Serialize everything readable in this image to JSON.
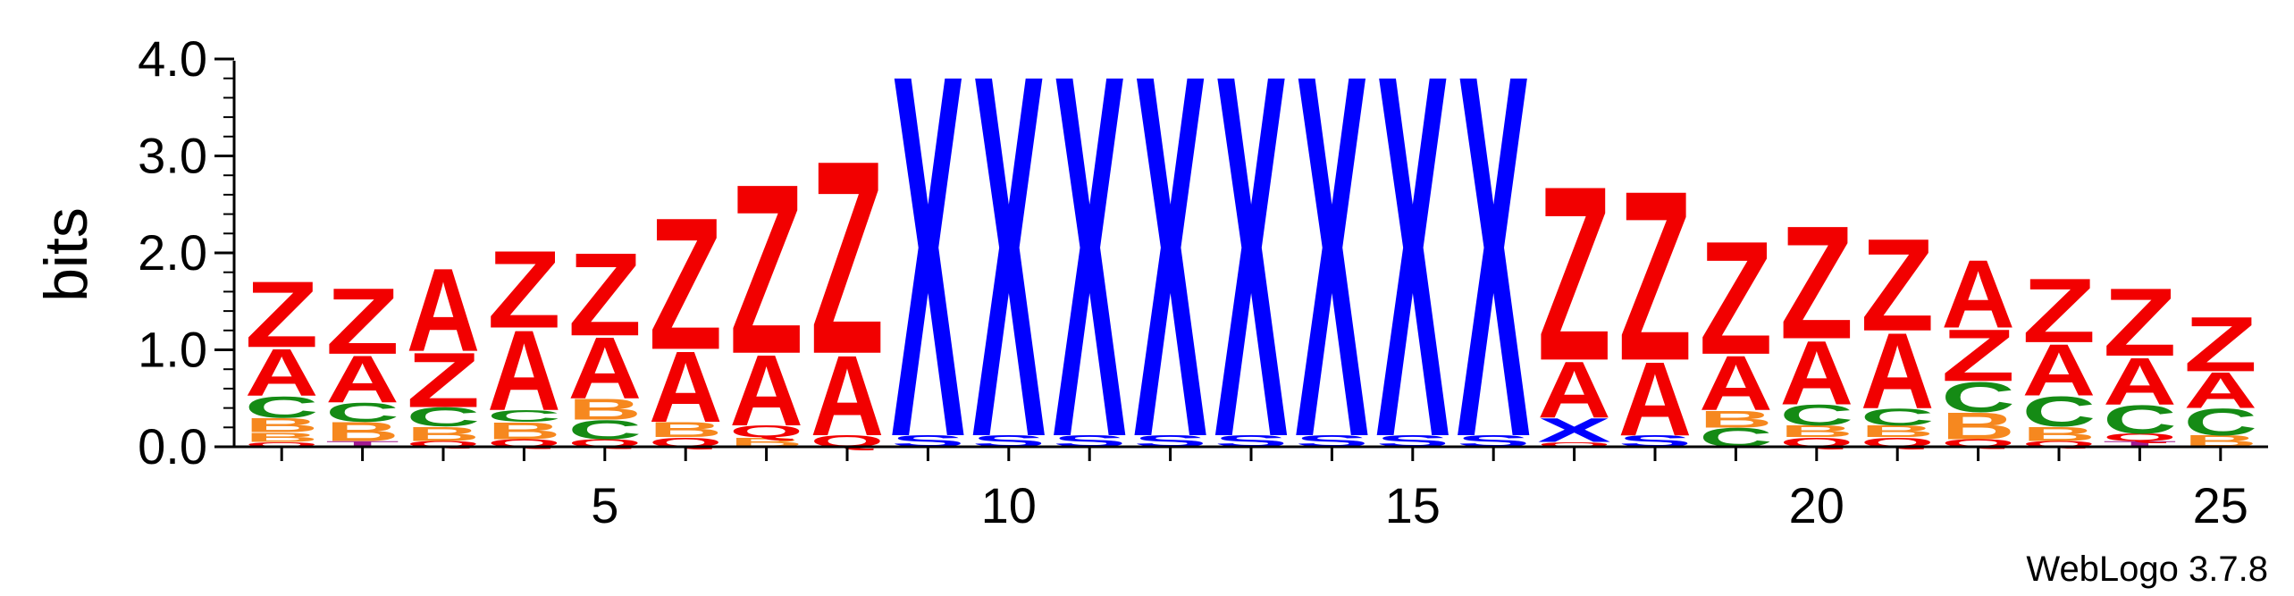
{
  "chart_data": {
    "type": "sequence-logo",
    "ylabel": "bits",
    "ylim": [
      0,
      4.0
    ],
    "y_ticks": [
      "0.0",
      "1.0",
      "2.0",
      "3.0",
      "4.0"
    ],
    "x_range": [
      1,
      25
    ],
    "x_ticks": [
      "5",
      "10",
      "15",
      "20",
      "25"
    ],
    "footer": "WebLogo 3.7.8",
    "colors": {
      "Z": "#f20000",
      "A": "#f20000",
      "Q": "#f20000",
      "X": "#0000ff",
      "S": "#0000ff",
      "C": "#158b15",
      "B": "#f6881f",
      "T": "#a01a91"
    },
    "positions": [
      {
        "pos": 1,
        "stacks": [
          [
            "Q",
            0.05
          ],
          [
            "B",
            0.1
          ],
          [
            "B",
            0.15
          ],
          [
            "C",
            0.23
          ],
          [
            "A",
            0.5
          ],
          [
            "Z",
            0.7
          ]
        ]
      },
      {
        "pos": 2,
        "stacks": [
          [
            "T",
            0.06
          ],
          [
            "B",
            0.2
          ],
          [
            "C",
            0.2
          ],
          [
            "A",
            0.5
          ],
          [
            "Z",
            0.7
          ]
        ]
      },
      {
        "pos": 3,
        "stacks": [
          [
            "Q",
            0.06
          ],
          [
            "B",
            0.15
          ],
          [
            "C",
            0.2
          ],
          [
            "Z",
            0.58
          ],
          [
            "A",
            0.88
          ]
        ]
      },
      {
        "pos": 4,
        "stacks": [
          [
            "Q",
            0.08
          ],
          [
            "B",
            0.18
          ],
          [
            "C",
            0.12
          ],
          [
            "A",
            0.85
          ],
          [
            "Z",
            0.82
          ]
        ]
      },
      {
        "pos": 5,
        "stacks": [
          [
            "Q",
            0.08
          ],
          [
            "C",
            0.2
          ],
          [
            "B",
            0.22
          ],
          [
            "A",
            0.65
          ],
          [
            "Z",
            0.88
          ]
        ]
      },
      {
        "pos": 6,
        "stacks": [
          [
            "Q",
            0.1
          ],
          [
            "B",
            0.16
          ],
          [
            "A",
            0.75
          ],
          [
            "Z",
            1.4
          ]
        ]
      },
      {
        "pos": 7,
        "stacks": [
          [
            "B",
            0.1
          ],
          [
            "Q",
            0.12
          ],
          [
            "A",
            0.75
          ],
          [
            "Z",
            1.8
          ]
        ]
      },
      {
        "pos": 8,
        "stacks": [
          [
            "Q",
            0.12
          ],
          [
            "A",
            0.85
          ],
          [
            "Z",
            2.05
          ]
        ]
      },
      {
        "pos": 9,
        "stacks": [
          [
            "S",
            0.12
          ],
          [
            "X",
            3.85
          ]
        ]
      },
      {
        "pos": 10,
        "stacks": [
          [
            "S",
            0.12
          ],
          [
            "X",
            3.85
          ]
        ]
      },
      {
        "pos": 11,
        "stacks": [
          [
            "S",
            0.12
          ],
          [
            "X",
            3.85
          ]
        ]
      },
      {
        "pos": 12,
        "stacks": [
          [
            "S",
            0.12
          ],
          [
            "X",
            3.85
          ]
        ]
      },
      {
        "pos": 13,
        "stacks": [
          [
            "S",
            0.12
          ],
          [
            "X",
            3.85
          ]
        ]
      },
      {
        "pos": 14,
        "stacks": [
          [
            "S",
            0.12
          ],
          [
            "X",
            3.85
          ]
        ]
      },
      {
        "pos": 15,
        "stacks": [
          [
            "S",
            0.12
          ],
          [
            "X",
            3.85
          ]
        ]
      },
      {
        "pos": 16,
        "stacks": [
          [
            "S",
            0.12
          ],
          [
            "X",
            3.85
          ]
        ]
      },
      {
        "pos": 17,
        "stacks": [
          [
            "Q",
            0.05
          ],
          [
            "X",
            0.25
          ],
          [
            "A",
            0.6
          ],
          [
            "Z",
            1.85
          ]
        ]
      },
      {
        "pos": 18,
        "stacks": [
          [
            "S",
            0.12
          ],
          [
            "A",
            0.78
          ],
          [
            "Z",
            1.8
          ]
        ]
      },
      {
        "pos": 19,
        "stacks": [
          [
            "C",
            0.2
          ],
          [
            "B",
            0.18
          ],
          [
            "A",
            0.58
          ],
          [
            "Z",
            1.2
          ]
        ]
      },
      {
        "pos": 20,
        "stacks": [
          [
            "Q",
            0.1
          ],
          [
            "B",
            0.12
          ],
          [
            "C",
            0.22
          ],
          [
            "A",
            0.68
          ],
          [
            "Z",
            1.2
          ]
        ]
      },
      {
        "pos": 21,
        "stacks": [
          [
            "Q",
            0.1
          ],
          [
            "B",
            0.12
          ],
          [
            "C",
            0.18
          ],
          [
            "A",
            0.8
          ],
          [
            "Z",
            0.98
          ]
        ]
      },
      {
        "pos": 22,
        "stacks": [
          [
            "Q",
            0.08
          ],
          [
            "B",
            0.28
          ],
          [
            "C",
            0.32
          ],
          [
            "Z",
            0.55
          ],
          [
            "A",
            0.72
          ]
        ]
      },
      {
        "pos": 23,
        "stacks": [
          [
            "Q",
            0.06
          ],
          [
            "B",
            0.15
          ],
          [
            "C",
            0.32
          ],
          [
            "A",
            0.55
          ],
          [
            "Z",
            0.68
          ]
        ]
      },
      {
        "pos": 24,
        "stacks": [
          [
            "T",
            0.06
          ],
          [
            "Q",
            0.08
          ],
          [
            "C",
            0.3
          ],
          [
            "A",
            0.5
          ],
          [
            "Z",
            0.72
          ]
        ]
      },
      {
        "pos": 25,
        "stacks": [
          [
            "B",
            0.12
          ],
          [
            "C",
            0.28
          ],
          [
            "A",
            0.38
          ],
          [
            "Z",
            0.58
          ]
        ]
      }
    ]
  }
}
